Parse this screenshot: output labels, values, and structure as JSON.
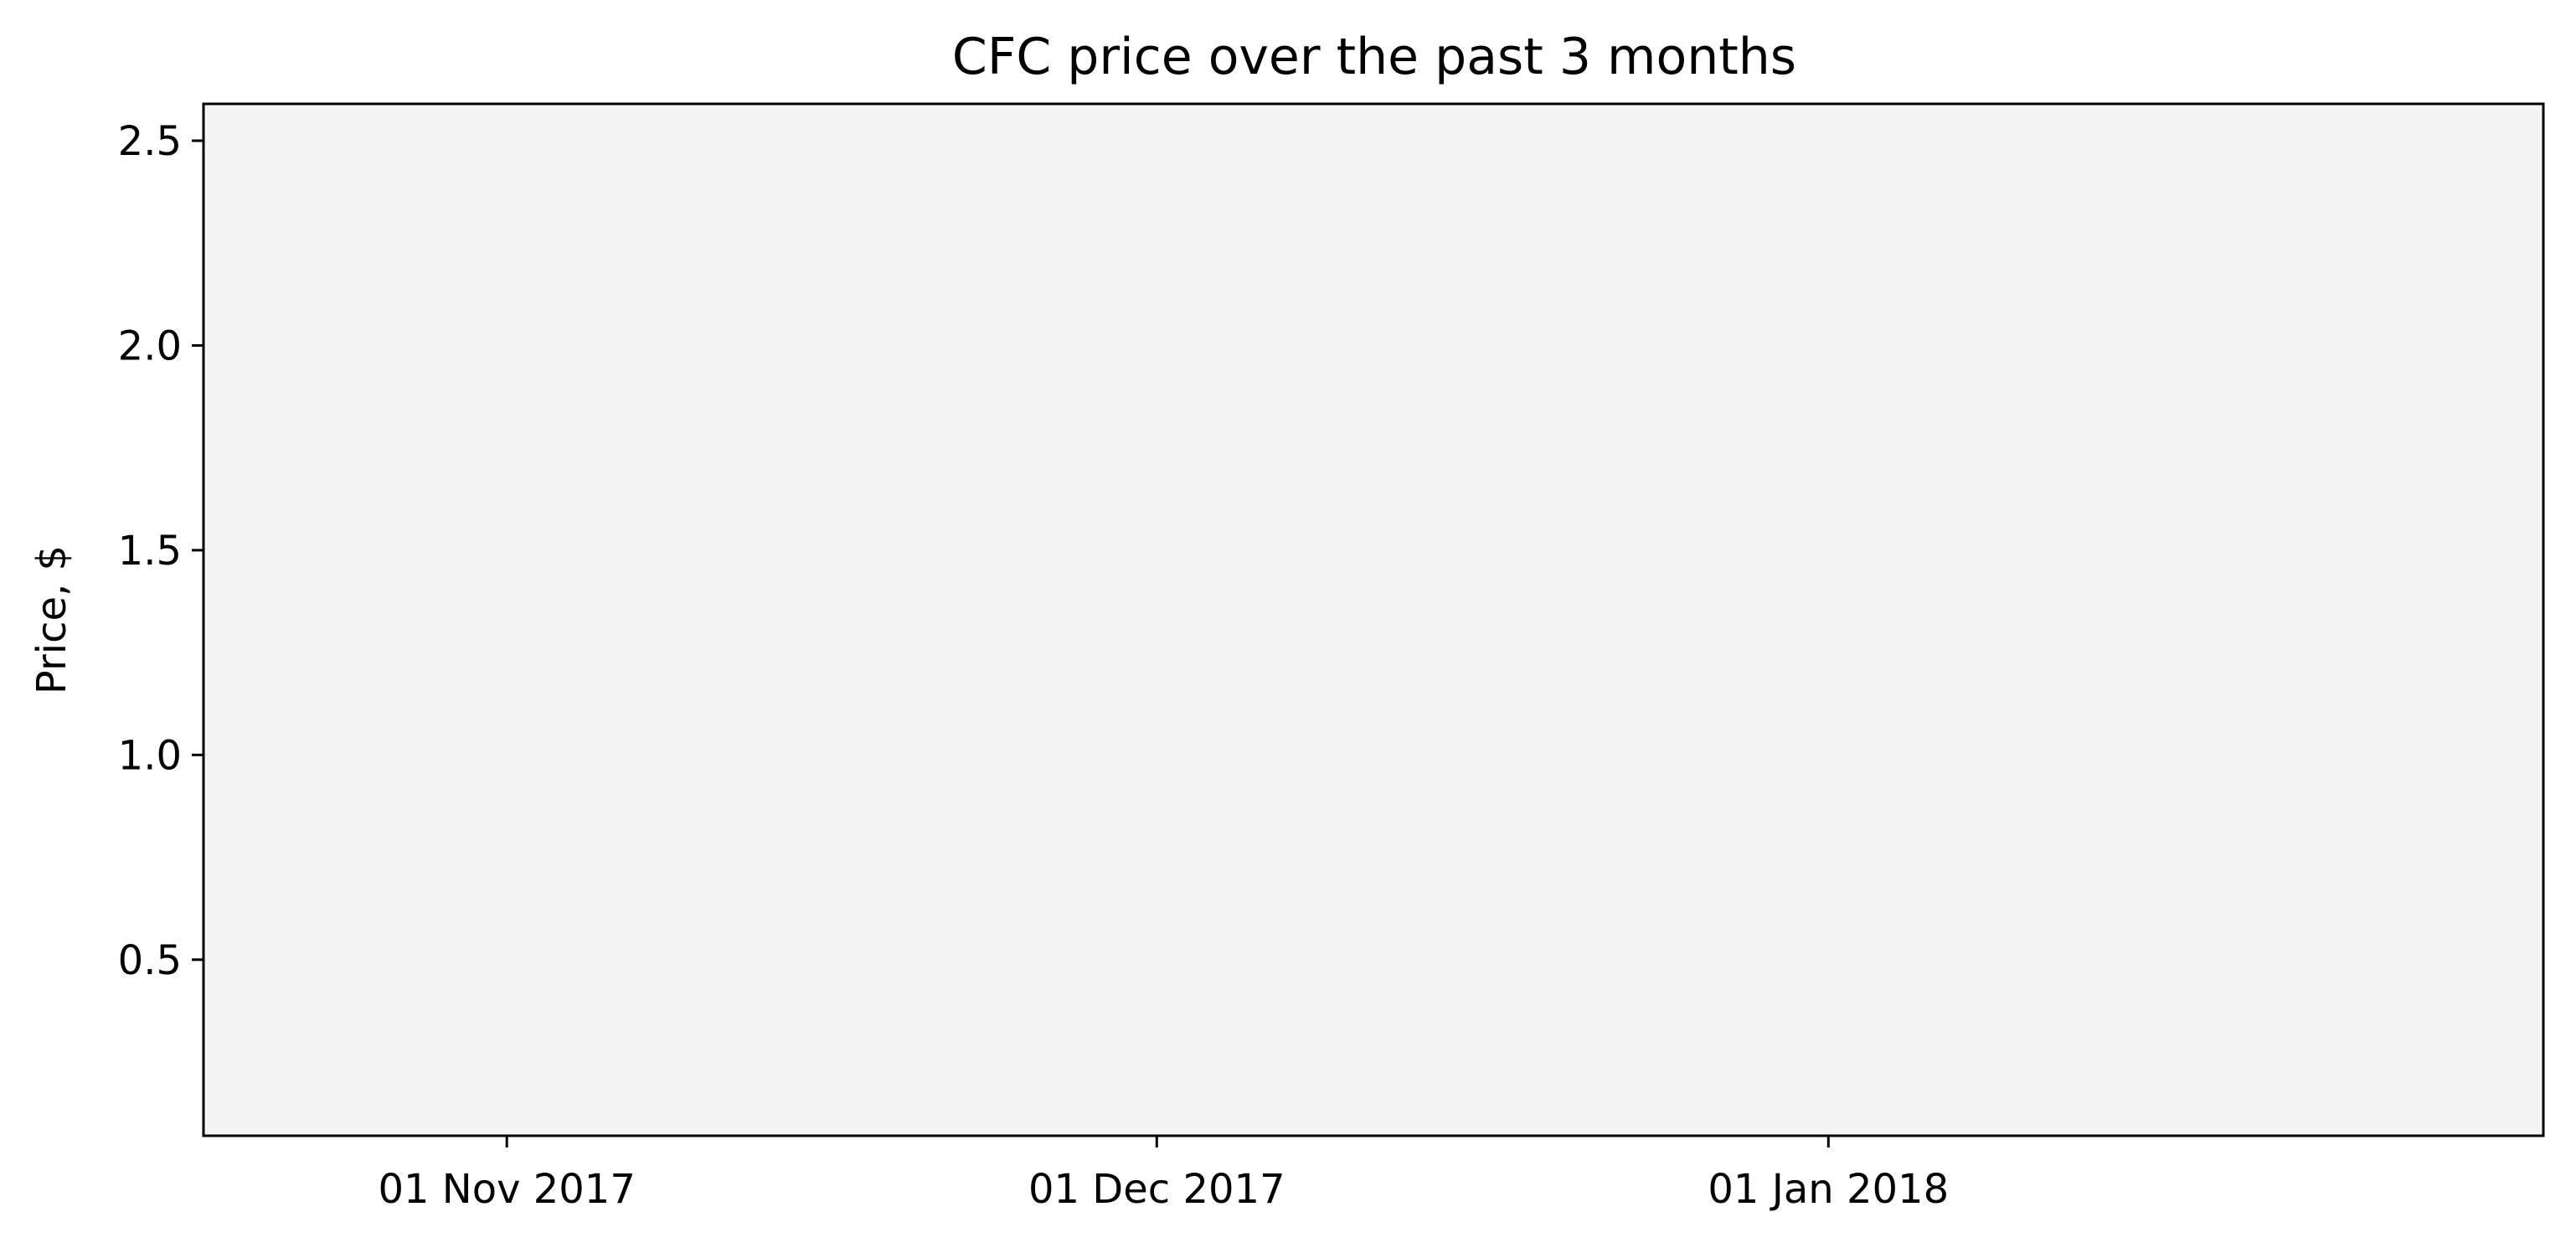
{
  "chart_data": {
    "type": "line",
    "title": "CFC price over the past 3 months",
    "xlabel": "",
    "ylabel": "Price, $",
    "x_ticks": [
      {
        "date": "2017-11-01",
        "label": "01 Nov 2017"
      },
      {
        "date": "2017-12-01",
        "label": "01 Dec 2017"
      },
      {
        "date": "2018-01-01",
        "label": "01 Jan 2018"
      }
    ],
    "y_ticks": [
      {
        "value": 0.5,
        "label": "0.5"
      },
      {
        "value": 1.0,
        "label": "1.0"
      },
      {
        "value": 1.5,
        "label": "1.5"
      },
      {
        "value": 2.0,
        "label": "2.0"
      },
      {
        "value": 2.5,
        "label": "2.5"
      }
    ],
    "xlim": [
      "2017-10-18",
      "2018-02-03"
    ],
    "ylim": [
      0.07,
      2.59
    ],
    "series": [],
    "grid": false,
    "legend": "none",
    "colors": {
      "plot_background": "#f4f4f4",
      "axes_color": "#000000",
      "page_background": "#ffffff"
    }
  }
}
